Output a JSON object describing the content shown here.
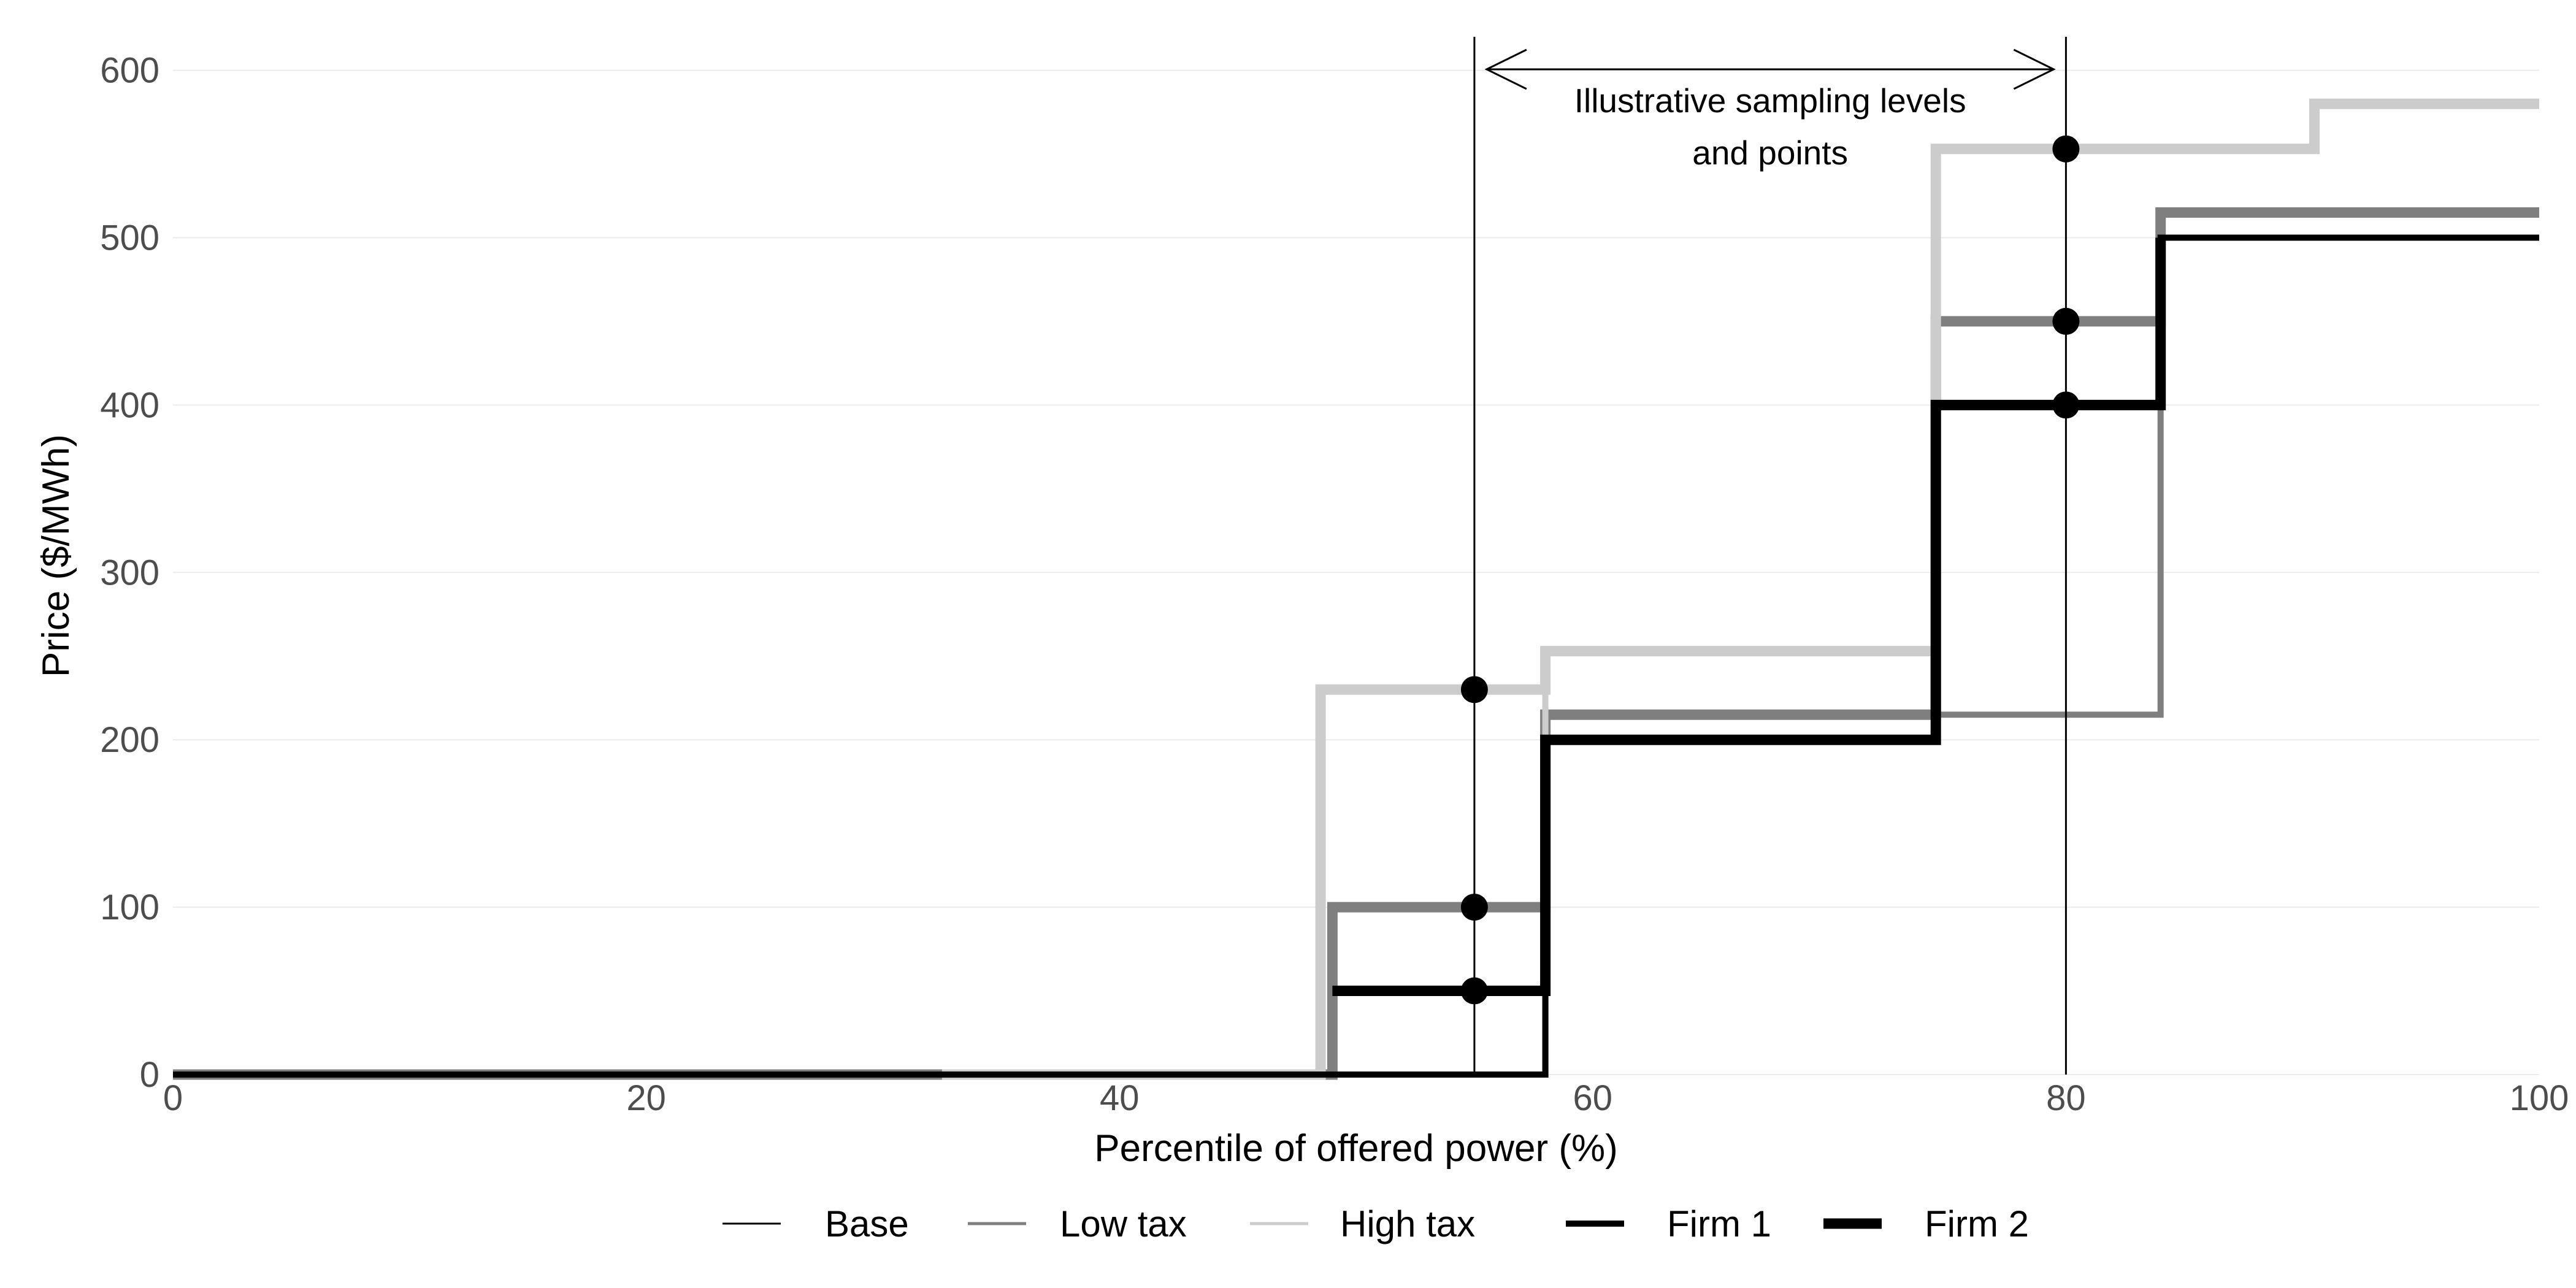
{
  "chart_data": {
    "type": "line",
    "subtype": "step",
    "xlabel": "Percentile of offered power (%)",
    "ylabel": "Price  ($/MWh)",
    "xlim": [
      0,
      100
    ],
    "ylim": [
      0,
      620
    ],
    "xticks": [
      0,
      20,
      40,
      60,
      80,
      100
    ],
    "yticks": [
      0,
      100,
      200,
      300,
      400,
      500,
      600
    ],
    "grid": true,
    "legend_position": "bottom",
    "legend": {
      "scenario": [
        {
          "name": "Base",
          "color": "#000000"
        },
        {
          "name": "Low tax",
          "color": "#7f7f7f"
        },
        {
          "name": "High tax",
          "color": "#cccccc"
        }
      ],
      "firm": [
        {
          "name": "Firm 1",
          "style": "thin"
        },
        {
          "name": "Firm 2",
          "style": "thick"
        }
      ]
    },
    "series": [
      {
        "scenario": "Low tax",
        "firm": "Firm 1",
        "color": "#7f7f7f",
        "x": [
          0,
          58,
          58,
          84,
          84,
          100
        ],
        "y": [
          0,
          0,
          215,
          215,
          515,
          515
        ]
      },
      {
        "scenario": "Low tax",
        "firm": "Firm 2",
        "color": "#7f7f7f",
        "x": [
          0,
          49,
          49,
          58,
          58,
          74.5,
          74.5,
          84,
          84,
          100
        ],
        "y": [
          0,
          0,
          100,
          100,
          215,
          215,
          450,
          450,
          515,
          515
        ]
      },
      {
        "scenario": "High tax",
        "firm": "Firm 1",
        "color": "#cccccc",
        "x": [
          0,
          58,
          58,
          74.5,
          74.5,
          90.5,
          90.5,
          100
        ],
        "y": [
          0,
          0,
          253,
          253,
          553,
          553,
          580,
          580
        ]
      },
      {
        "scenario": "High tax",
        "firm": "Firm 2",
        "color": "#cccccc",
        "x": [
          32.5,
          48.5,
          48.5,
          58,
          58,
          74.5,
          74.5,
          90.5,
          90.5,
          100
        ],
        "y": [
          0,
          0,
          230,
          230,
          253,
          253,
          553,
          553,
          580,
          580
        ]
      },
      {
        "scenario": "Base",
        "firm": "Firm 1",
        "color": "#000000",
        "x": [
          0,
          58,
          58,
          74.5,
          74.5,
          84,
          84,
          100
        ],
        "y": [
          0,
          0,
          200,
          200,
          400,
          400,
          500,
          500
        ]
      },
      {
        "scenario": "Base",
        "firm": "Firm 2",
        "color": "#000000",
        "x": [
          49,
          58,
          58,
          74.5,
          74.5,
          84,
          84
        ],
        "y": [
          50,
          50,
          200,
          200,
          400,
          400,
          500
        ]
      }
    ],
    "vlines": [
      55,
      80
    ],
    "sample_points": [
      {
        "x": 55,
        "y": 230
      },
      {
        "x": 55,
        "y": 100
      },
      {
        "x": 55,
        "y": 50
      },
      {
        "x": 80,
        "y": 553
      },
      {
        "x": 80,
        "y": 450
      },
      {
        "x": 80,
        "y": 400
      }
    ],
    "annotation": {
      "line1": "Illustrative sampling levels",
      "line2": "and points",
      "arrow_from": 55,
      "arrow_to": 80
    }
  }
}
